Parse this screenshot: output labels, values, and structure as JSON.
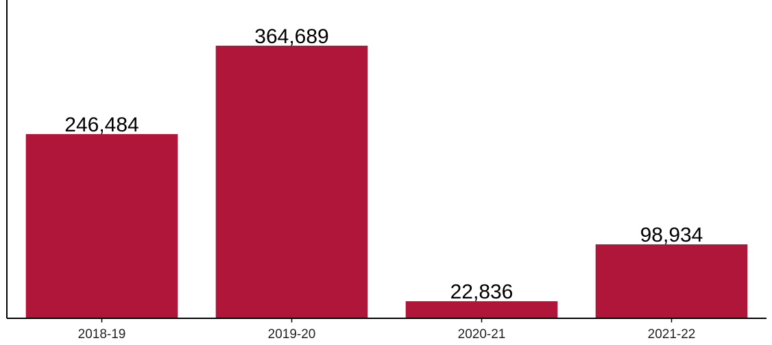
{
  "chart_data": {
    "type": "bar",
    "categories": [
      "2018-19",
      "2019-20",
      "2020-21",
      "2021-22"
    ],
    "values": [
      246484,
      364689,
      22836,
      98934
    ],
    "data_labels": [
      "246,484",
      "364,689",
      "22,836",
      "98,934"
    ],
    "ylim": [
      0,
      400000
    ],
    "grid": false,
    "legend": "none",
    "bar_color": "#af1639"
  }
}
